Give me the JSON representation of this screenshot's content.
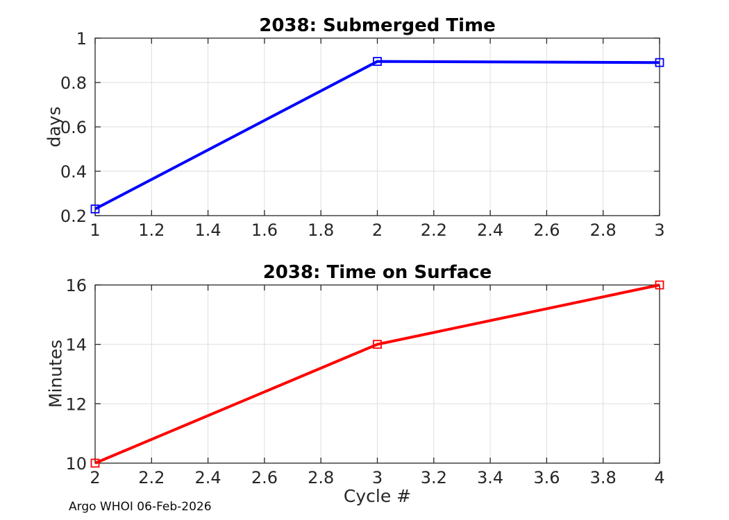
{
  "footer": {
    "text": "Argo WHOI 06-Feb-2026"
  },
  "colors": {
    "background": "#ffffff",
    "axis": "#262626",
    "grid": "#dedede",
    "tick_label": "#262626",
    "title_text": "#000000",
    "submerged_line": "#0000ff",
    "surface_line": "#ff0000"
  },
  "chart_data": [
    {
      "id": "submerged_time",
      "type": "line",
      "title": "2038: Submerged Time",
      "xlabel": "",
      "ylabel": "days",
      "x": [
        1,
        2,
        3
      ],
      "y": [
        0.23,
        0.895,
        0.89
      ],
      "xlim": [
        1,
        3
      ],
      "ylim": [
        0.2,
        1
      ],
      "xticks": [
        1,
        1.2,
        1.4,
        1.6,
        1.8,
        2,
        2.2,
        2.4,
        2.6,
        2.8,
        3
      ],
      "yticks": [
        0.2,
        0.4,
        0.6,
        0.8,
        1
      ],
      "line_color": "#0000ff",
      "marker": "open-square",
      "grid": true,
      "legend": null
    },
    {
      "id": "time_on_surface",
      "type": "line",
      "title": "2038: Time on Surface",
      "xlabel": "Cycle #",
      "ylabel": "Minutes",
      "x": [
        2,
        3,
        4
      ],
      "y": [
        10,
        14,
        16
      ],
      "xlim": [
        2,
        4
      ],
      "ylim": [
        10,
        16
      ],
      "xticks": [
        2,
        2.2,
        2.4,
        2.6,
        2.8,
        3,
        3.2,
        3.4,
        3.6,
        3.8,
        4
      ],
      "yticks": [
        10,
        12,
        14,
        16
      ],
      "line_color": "#ff0000",
      "marker": "open-square",
      "grid": true,
      "legend": null
    }
  ]
}
